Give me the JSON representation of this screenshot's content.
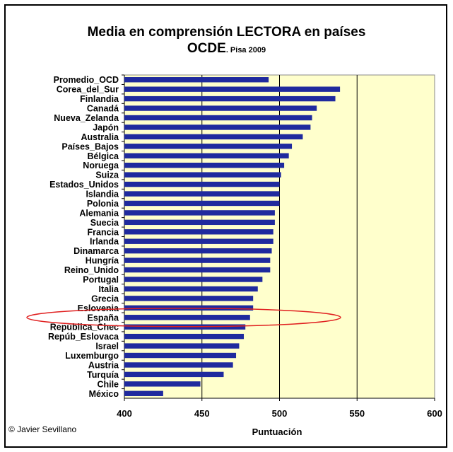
{
  "title": "Media en comprensión LECTORA en países",
  "subtitle_main": "OCDE",
  "subtitle_note": ". Pisa 2009",
  "credit": "© Javier Sevillano",
  "colors": {
    "bar": "#1F2A9E",
    "plot_bg": "#FFFFCC",
    "highlight": "#E02020"
  },
  "chart_data": {
    "type": "bar",
    "orientation": "horizontal",
    "xlabel": "Puntuación",
    "xlim": [
      400,
      600
    ],
    "xticks": [
      400,
      450,
      500,
      550,
      600
    ],
    "grid": "vertical",
    "highlight": "España",
    "categories": [
      "Promedio_OCD",
      "Corea_del_Sur",
      "Finlandia",
      "Canadá",
      "Nueva_Zelanda",
      "Japón",
      "Australia",
      "Países_Bajos",
      "Bélgica",
      "Noruega",
      "Suiza",
      "Estados_Unidos",
      "Islandia",
      "Polonia",
      "Alemania",
      "Suecia",
      "Francia",
      "Irlanda",
      "Dinamarca",
      "Hungría",
      "Reino_Unido",
      "Portugal",
      "Italia",
      "Grecia",
      "Eslovenia",
      "España",
      "República_Chec",
      "Repúb_Eslovaca",
      "Israel",
      "Luxemburgo",
      "Austria",
      "Turquía",
      "Chile",
      "México"
    ],
    "values": [
      493,
      539,
      536,
      524,
      521,
      520,
      515,
      508,
      506,
      503,
      501,
      500,
      500,
      500,
      497,
      497,
      496,
      496,
      495,
      494,
      494,
      489,
      486,
      483,
      483,
      481,
      478,
      477,
      474,
      472,
      470,
      464,
      449,
      425
    ]
  }
}
